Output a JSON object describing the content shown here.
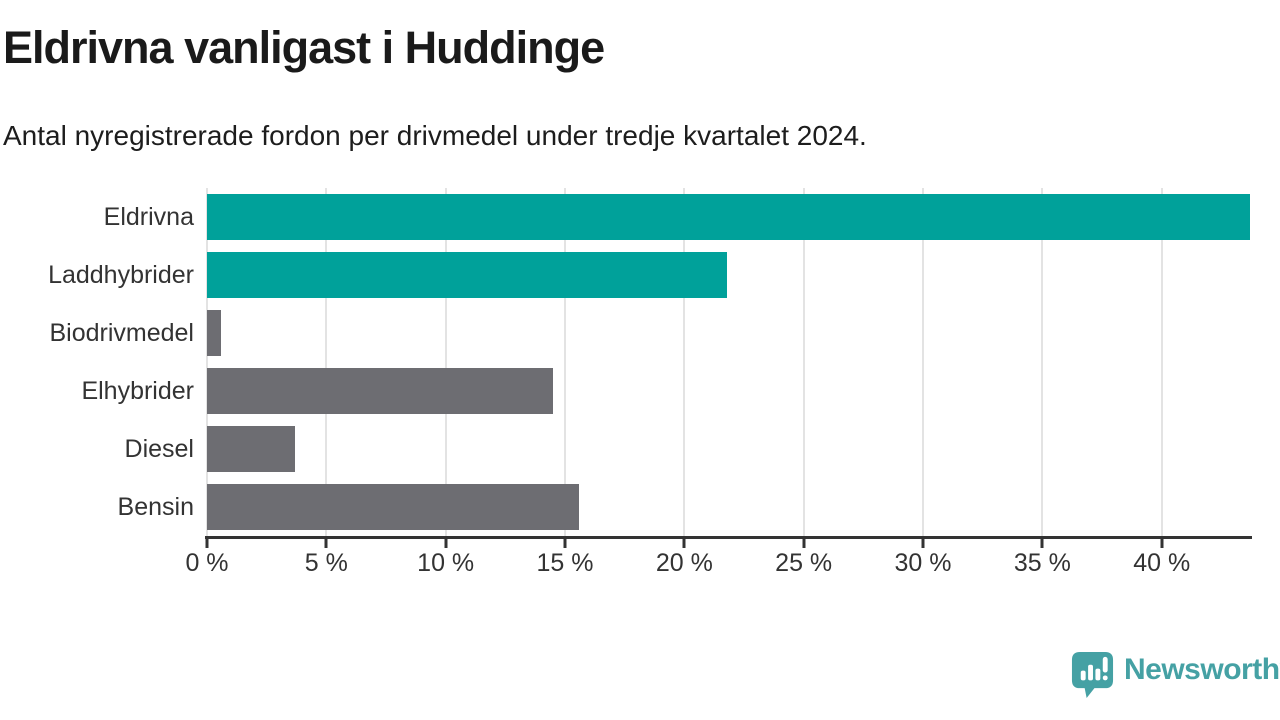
{
  "chart_data": {
    "type": "bar",
    "orientation": "horizontal",
    "title": "Eldrivna vanligast i Huddinge",
    "subtitle": "Antal nyregistrerade fordon per drivmedel under tredje kvartalet 2024.",
    "categories": [
      "Eldrivna",
      "Laddhybrider",
      "Biodrivmedel",
      "Elhybrider",
      "Diesel",
      "Bensin"
    ],
    "values": [
      43.7,
      21.8,
      0.6,
      14.5,
      3.7,
      15.6
    ],
    "unit": "%",
    "xlim": [
      0,
      43.7
    ],
    "xticks": [
      0,
      5,
      10,
      15,
      20,
      25,
      30,
      35,
      40
    ],
    "xtick_labels": [
      "0 %",
      "5 %",
      "10 %",
      "15 %",
      "20 %",
      "25 %",
      "30 %",
      "35 %",
      "40 %"
    ],
    "bar_colors": [
      "#00a19a",
      "#00a19a",
      "#6d6d72",
      "#6d6d72",
      "#6d6d72",
      "#6d6d72"
    ],
    "grid": true,
    "legend": null,
    "xlabel": "",
    "ylabel": ""
  },
  "colors": {
    "highlight_teal": "#00a19a",
    "neutral_gray": "#6d6d72",
    "gridline": "#e3e3e3",
    "axis": "#333333",
    "logo_teal": "#45a1a4"
  },
  "footer": {
    "brand": "Newsworthy"
  }
}
